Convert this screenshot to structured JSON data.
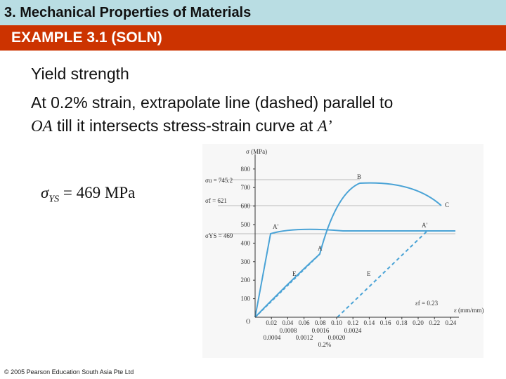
{
  "header": {
    "title": "3. Mechanical Properties of Materials",
    "subtitle": "EXAMPLE 3.1 (SOLN)"
  },
  "body": {
    "heading": "Yield strength",
    "line1": "At 0.2% strain, extrapolate line (dashed) parallel to",
    "line2": [
      "OA",
      " till it intersects stress-strain curve at ",
      "A’"
    ]
  },
  "result": [
    "σ",
    "YS",
    " = 469 MPa"
  ],
  "figure": {
    "y_axis_label": "σ (MPa)",
    "x_axis_label": "ε (mm/mm)",
    "yticks": [
      "100",
      "200",
      "300",
      "400",
      "500",
      "600",
      "700",
      "800"
    ],
    "xticks": [
      "0.02",
      "0.04",
      "0.06",
      "0.08",
      "0.10",
      "0.12",
      "0.14",
      "0.16",
      "0.18",
      "0.20",
      "0.22",
      "0.24"
    ],
    "small_ticks_upper": [
      "0.0008",
      "0.0016",
      "0.0024"
    ],
    "small_ticks_lower": [
      "0.0004",
      "0.0012",
      "0.0020"
    ],
    "offset_label": "0.2%",
    "sigma_u": "σu = 745.2",
    "sigma_f": "σf = 621",
    "sigma_ys": "σYS = 469",
    "eps_f": "εf = 0.23",
    "points": {
      "O": "O",
      "A": "A",
      "A_prime_1": "A′",
      "A_prime_2": "A′",
      "B": "B",
      "C": "C",
      "E1": "E",
      "E2": "E"
    }
  },
  "footer": "© 2005 Pearson Education South Asia Pte Ltd"
}
